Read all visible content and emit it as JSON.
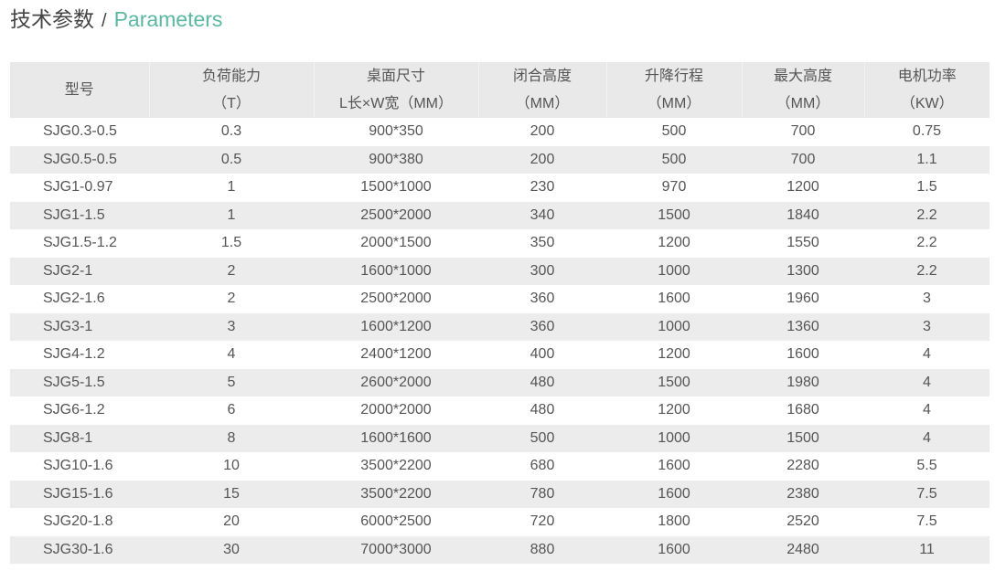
{
  "title": {
    "cn": "技术参数",
    "sep": "/",
    "en": "Parameters"
  },
  "table": {
    "headers": [
      {
        "line1": "型号",
        "line2": ""
      },
      {
        "line1": "负荷能力",
        "line2": "（T）"
      },
      {
        "line1": "桌面尺寸",
        "line2": "L长×W宽（MM）"
      },
      {
        "line1": "闭合高度",
        "line2": "（MM）"
      },
      {
        "line1": "升降行程",
        "line2": "（MM）"
      },
      {
        "line1": "最大高度",
        "line2": "（MM）"
      },
      {
        "line1": "电机功率",
        "line2": "（KW）"
      }
    ],
    "rows": [
      [
        "SJG0.3-0.5",
        "0.3",
        "900*350",
        "200",
        "500",
        "700",
        "0.75"
      ],
      [
        "SJG0.5-0.5",
        "0.5",
        "900*380",
        "200",
        "500",
        "700",
        "1.1"
      ],
      [
        "SJG1-0.97",
        "1",
        "1500*1000",
        "230",
        "970",
        "1200",
        "1.5"
      ],
      [
        "SJG1-1.5",
        "1",
        "2500*2000",
        "340",
        "1500",
        "1840",
        "2.2"
      ],
      [
        "SJG1.5-1.2",
        "1.5",
        "2000*1500",
        "350",
        "1200",
        "1550",
        "2.2"
      ],
      [
        "SJG2-1",
        "2",
        "1600*1000",
        "300",
        "1000",
        "1300",
        "2.2"
      ],
      [
        "SJG2-1.6",
        "2",
        "2500*2000",
        "360",
        "1600",
        "1960",
        "3"
      ],
      [
        "SJG3-1",
        "3",
        "1600*1200",
        "360",
        "1000",
        "1360",
        "3"
      ],
      [
        "SJG4-1.2",
        "4",
        "2400*1200",
        "400",
        "1200",
        "1600",
        "4"
      ],
      [
        "SJG5-1.5",
        "5",
        "2600*2000",
        "480",
        "1500",
        "1980",
        "4"
      ],
      [
        "SJG6-1.2",
        "6",
        "2000*2000",
        "480",
        "1200",
        "1680",
        "4"
      ],
      [
        "SJG8-1",
        "8",
        "1600*1600",
        "500",
        "1000",
        "1500",
        "4"
      ],
      [
        "SJG10-1.6",
        "10",
        "3500*2200",
        "680",
        "1600",
        "2280",
        "5.5"
      ],
      [
        "SJG15-1.6",
        "15",
        "3500*2200",
        "780",
        "1600",
        "2380",
        "7.5"
      ],
      [
        "SJG20-1.8",
        "20",
        "6000*2500",
        "720",
        "1800",
        "2520",
        "7.5"
      ],
      [
        "SJG30-1.6",
        "30",
        "7000*3000",
        "880",
        "1600",
        "2480",
        "11"
      ]
    ]
  },
  "colors": {
    "accent": "#5bb8a0",
    "header_bg": "#e9e9e9",
    "stripe_bg": "#ececec"
  }
}
